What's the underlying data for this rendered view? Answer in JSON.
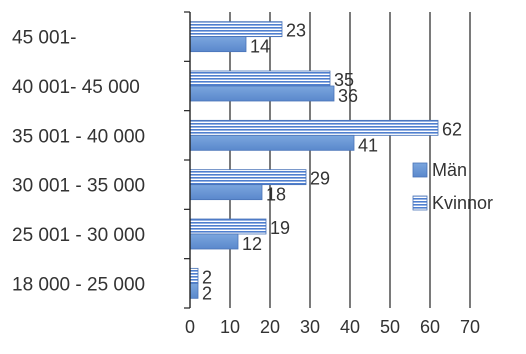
{
  "chart_data": {
    "type": "bar",
    "orientation": "horizontal",
    "categories": [
      "45 001-",
      "40 001- 45 000",
      "35 001 - 40 000",
      "30 001 - 35 000",
      "25 001 - 30 000",
      "18 000 - 25 000"
    ],
    "series": [
      {
        "name": "Kvinnor",
        "values": [
          23,
          35,
          62,
          29,
          19,
          2
        ],
        "color": "#4f7fcf",
        "pattern": "horizontal-stripes"
      },
      {
        "name": "Män",
        "values": [
          14,
          36,
          41,
          18,
          12,
          2
        ],
        "color": "#6a9ad8",
        "pattern": "solid"
      }
    ],
    "xlim": [
      0,
      70
    ],
    "xticks": [
      "0",
      "10",
      "20",
      "30",
      "40",
      "50",
      "60",
      "70"
    ],
    "grid": true,
    "legend": {
      "position": "right",
      "items": [
        "Män",
        "Kvinnor"
      ]
    }
  }
}
